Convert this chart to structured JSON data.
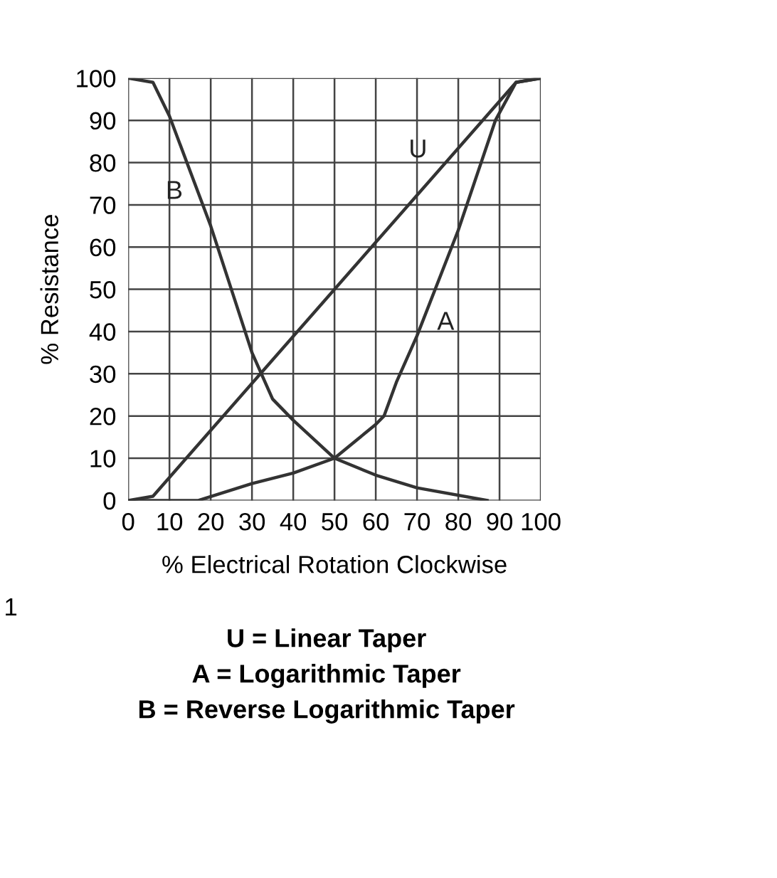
{
  "chart_data": {
    "type": "line",
    "xlabel": "% Electrical Rotation Clockwise",
    "ylabel": "% Resistance",
    "xlim": [
      0,
      100
    ],
    "ylim": [
      0,
      100
    ],
    "xticks": [
      0,
      10,
      20,
      30,
      40,
      50,
      60,
      70,
      80,
      90,
      100
    ],
    "yticks": [
      0,
      10,
      20,
      30,
      40,
      50,
      60,
      70,
      80,
      90,
      100
    ],
    "grid": true,
    "line_style": "solid",
    "marker": "none",
    "series": [
      {
        "name": "U",
        "color": "#333333",
        "x": [
          0,
          6,
          94,
          100
        ],
        "values": [
          0,
          1,
          99,
          100
        ]
      },
      {
        "name": "A",
        "color": "#333333",
        "x": [
          0,
          17,
          30,
          40,
          50,
          55,
          60,
          62,
          65,
          70,
          80,
          89,
          94,
          100
        ],
        "values": [
          0,
          0,
          4,
          6.5,
          10,
          14,
          18,
          20,
          28,
          39,
          64,
          90,
          99,
          100
        ]
      },
      {
        "name": "B",
        "color": "#333333",
        "x": [
          0,
          6,
          10,
          20,
          30,
          35,
          40,
          50,
          60,
          70,
          87
        ],
        "values": [
          100,
          99,
          91,
          65,
          35,
          24,
          19,
          10,
          6,
          3,
          0
        ]
      }
    ],
    "annotations": [
      "1",
      "U = Linear Taper",
      "A = Logarithmic Taper",
      "B = Reverse Logarithmic Taper"
    ]
  }
}
